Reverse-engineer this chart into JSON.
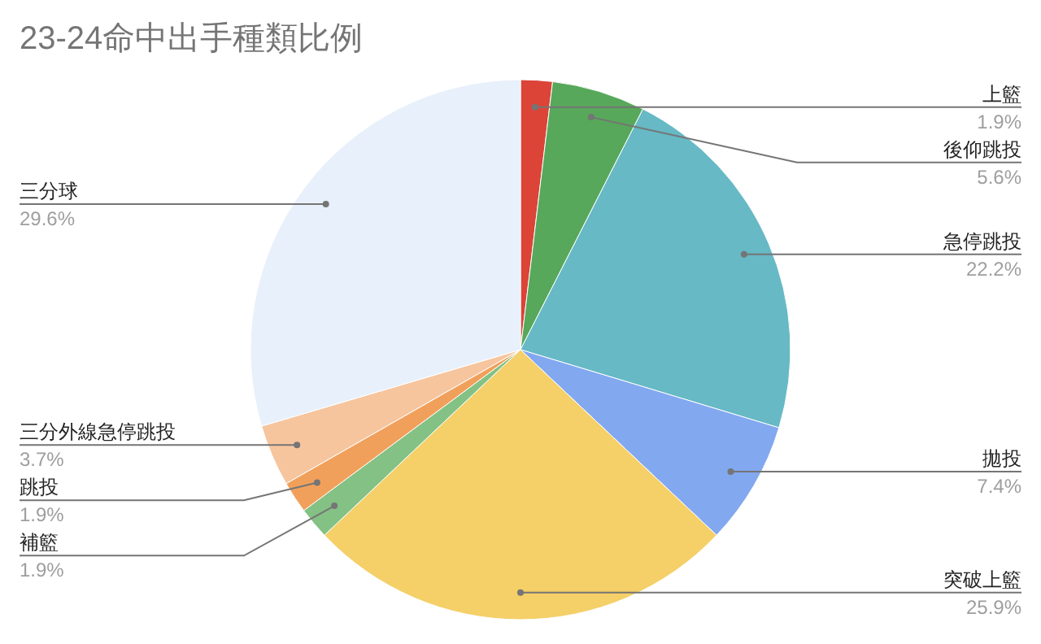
{
  "chart_data": {
    "type": "pie",
    "title": "23-24命中出手種類比例",
    "categories": [
      "上籃",
      "後仰跳投",
      "急停跳投",
      "拋投",
      "突破上籃",
      "補籃",
      "跳投",
      "三分外線急停跳投",
      "三分球"
    ],
    "values": [
      1.9,
      5.6,
      22.2,
      7.4,
      25.9,
      1.9,
      1.9,
      3.7,
      29.6
    ],
    "colors": [
      "#db4437",
      "#57a85b",
      "#66b9c5",
      "#82a8f0",
      "#f5cf67",
      "#84c184",
      "#f1a05b",
      "#f6c59e",
      "#e8f0fb"
    ],
    "value_labels": [
      "1.9%",
      "5.6%",
      "22.2%",
      "7.4%",
      "25.9%",
      "1.9%",
      "1.9%",
      "3.7%",
      "29.6%"
    ]
  }
}
